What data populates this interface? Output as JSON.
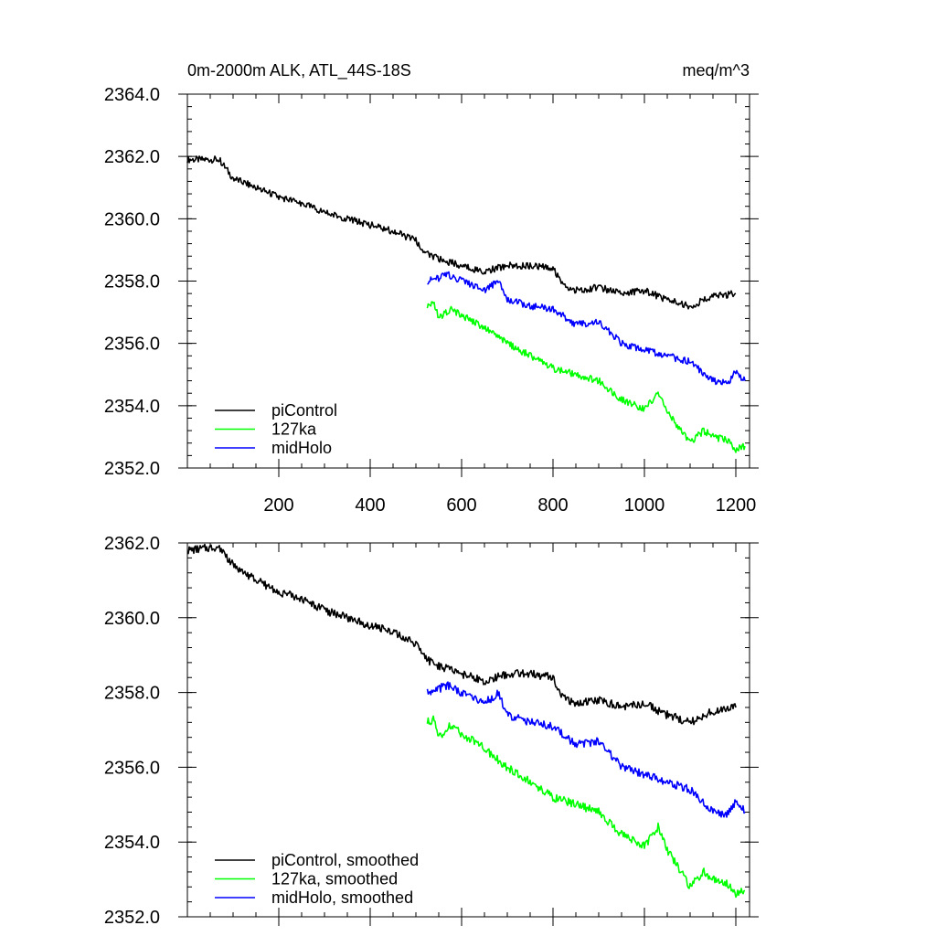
{
  "chart_data": [
    {
      "type": "line",
      "title": "0m-2000m ALK, ATL_44S-18S",
      "units": "meq/m^3",
      "xlim": [
        0,
        1230
      ],
      "ylim": [
        2352.0,
        2364.0
      ],
      "xticks": [
        200,
        400,
        600,
        800,
        1000,
        1200
      ],
      "xtick_labels": [
        "200",
        "400",
        "600",
        "800",
        "1000",
        "1200"
      ],
      "yticks": [
        2352.0,
        2354.0,
        2356.0,
        2358.0,
        2360.0,
        2362.0,
        2364.0
      ],
      "ytick_labels": [
        "2352.0",
        "2354.0",
        "2356.0",
        "2358.0",
        "2360.0",
        "2362.0",
        "2364.0"
      ],
      "legend_position": "bottom-left",
      "series": [
        {
          "name": "piControl",
          "color": "#000000",
          "x": [
            0,
            70,
            100,
            150,
            200,
            250,
            300,
            350,
            400,
            450,
            500,
            520,
            550,
            600,
            650,
            700,
            750,
            800,
            820,
            850,
            900,
            950,
            1000,
            1050,
            1100,
            1150,
            1200
          ],
          "y": [
            2361.9,
            2361.9,
            2361.3,
            2361.0,
            2360.7,
            2360.5,
            2360.2,
            2360.0,
            2359.8,
            2359.6,
            2359.3,
            2358.9,
            2358.7,
            2358.5,
            2358.3,
            2358.5,
            2358.5,
            2358.4,
            2357.9,
            2357.7,
            2357.8,
            2357.6,
            2357.7,
            2357.4,
            2357.2,
            2357.5,
            2357.6
          ]
        },
        {
          "name": "127ka",
          "color": "#00ff00",
          "x": [
            525,
            540,
            550,
            575,
            600,
            650,
            700,
            750,
            800,
            850,
            900,
            950,
            1000,
            1030,
            1050,
            1080,
            1100,
            1130,
            1150,
            1180,
            1200,
            1220
          ],
          "y": [
            2357.2,
            2357.3,
            2356.8,
            2357.1,
            2356.9,
            2356.5,
            2356.0,
            2355.6,
            2355.2,
            2355.0,
            2354.8,
            2354.2,
            2353.9,
            2354.4,
            2353.8,
            2353.2,
            2352.8,
            2353.2,
            2353.0,
            2352.9,
            2352.6,
            2352.7
          ]
        },
        {
          "name": "midHolo",
          "color": "#0000ff",
          "x": [
            525,
            550,
            570,
            600,
            650,
            680,
            700,
            750,
            800,
            850,
            900,
            950,
            1000,
            1050,
            1100,
            1150,
            1180,
            1200,
            1220
          ],
          "y": [
            2358.0,
            2358.1,
            2358.2,
            2358.0,
            2357.7,
            2358.0,
            2357.4,
            2357.2,
            2357.1,
            2356.6,
            2356.7,
            2356.0,
            2355.8,
            2355.6,
            2355.4,
            2354.8,
            2354.7,
            2355.1,
            2354.8
          ]
        }
      ]
    },
    {
      "type": "line",
      "title": "",
      "xlim": [
        0,
        1230
      ],
      "ylim": [
        2352.0,
        2362.0
      ],
      "xticks": [
        200,
        400,
        600,
        800,
        1000,
        1200
      ],
      "yticks": [
        2352.0,
        2354.0,
        2356.0,
        2358.0,
        2360.0,
        2362.0
      ],
      "ytick_labels": [
        "2352.0",
        "2354.0",
        "2356.0",
        "2358.0",
        "2360.0",
        "2362.0"
      ],
      "legend_position": "bottom-left",
      "series": [
        {
          "name": "piControl, smoothed",
          "color": "#000000",
          "x": [
            0,
            70,
            100,
            150,
            200,
            250,
            300,
            350,
            400,
            450,
            500,
            520,
            550,
            600,
            650,
            700,
            750,
            800,
            820,
            850,
            900,
            950,
            1000,
            1050,
            1100,
            1150,
            1200
          ],
          "y": [
            2361.8,
            2361.9,
            2361.4,
            2361.0,
            2360.7,
            2360.5,
            2360.2,
            2360.0,
            2359.8,
            2359.6,
            2359.3,
            2358.9,
            2358.7,
            2358.5,
            2358.3,
            2358.5,
            2358.5,
            2358.4,
            2357.9,
            2357.7,
            2357.8,
            2357.6,
            2357.7,
            2357.4,
            2357.2,
            2357.5,
            2357.6
          ]
        },
        {
          "name": "127ka, smoothed",
          "color": "#00ff00",
          "x": [
            525,
            540,
            550,
            575,
            600,
            650,
            700,
            750,
            800,
            850,
            900,
            950,
            1000,
            1030,
            1050,
            1080,
            1100,
            1130,
            1150,
            1180,
            1200,
            1220
          ],
          "y": [
            2357.2,
            2357.3,
            2356.8,
            2357.1,
            2356.9,
            2356.5,
            2356.0,
            2355.6,
            2355.2,
            2355.0,
            2354.8,
            2354.2,
            2353.9,
            2354.4,
            2353.8,
            2353.2,
            2352.8,
            2353.2,
            2353.0,
            2352.9,
            2352.6,
            2352.7
          ]
        },
        {
          "name": "midHolo, smoothed",
          "color": "#0000ff",
          "x": [
            525,
            550,
            570,
            600,
            650,
            680,
            700,
            750,
            800,
            850,
            900,
            950,
            1000,
            1050,
            1100,
            1150,
            1180,
            1200,
            1220
          ],
          "y": [
            2358.0,
            2358.1,
            2358.2,
            2358.0,
            2357.7,
            2358.0,
            2357.4,
            2357.2,
            2357.1,
            2356.6,
            2356.7,
            2356.0,
            2355.8,
            2355.6,
            2355.4,
            2354.8,
            2354.7,
            2355.1,
            2354.8
          ]
        }
      ]
    }
  ]
}
